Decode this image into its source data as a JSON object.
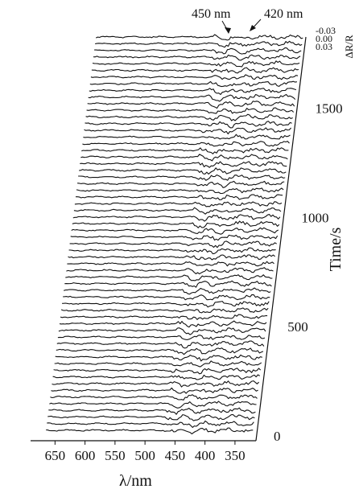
{
  "chart_data": {
    "type": "line",
    "subtype": "waterfall-3d",
    "xlabel": "λ/nm",
    "x_ticks": [
      "650",
      "600",
      "550",
      "500",
      "450",
      "400",
      "350"
    ],
    "xlim": [
      680,
      315
    ],
    "zlabel": "Time/s",
    "z_ticks": [
      "0",
      "500",
      "1000",
      "1500"
    ],
    "zlim": [
      0,
      1800
    ],
    "ylabel": "ΔR/R",
    "y_ticks": [
      "-0.03",
      "0.00",
      "0.03"
    ],
    "trace_count": 60,
    "trace_time_step_s": 30,
    "annotations": [
      {
        "text": "450 nm"
      },
      {
        "text": "420 nm"
      }
    ],
    "features": [
      {
        "wavelength_nm": 450,
        "kind": "reflectance dip"
      },
      {
        "wavelength_nm": 420,
        "kind": "reflectance dip"
      }
    ],
    "grid": false,
    "legend": "none"
  }
}
